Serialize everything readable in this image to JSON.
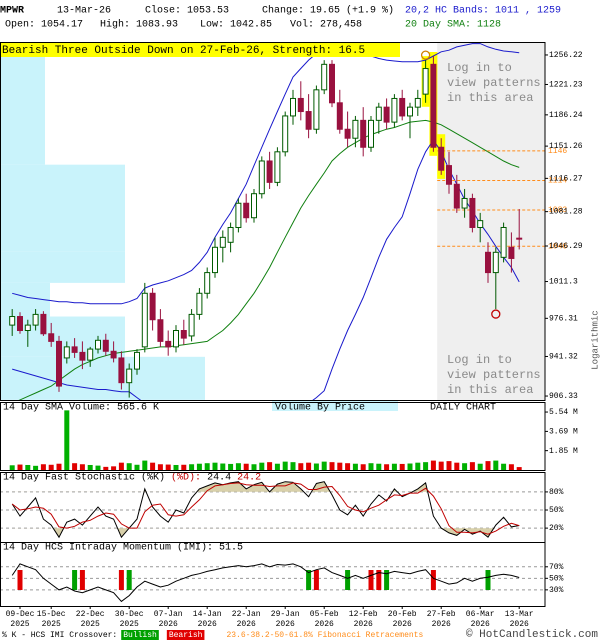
{
  "header": {
    "symbol": "MPWR",
    "date": "13-Mar-26",
    "close": "Close: 1053.53",
    "change": "Change: 19.65 (+1.9 %)",
    "open": "Open: 1054.17",
    "high": "High: 1083.93",
    "low": "Low: 1042.85",
    "volume": "Vol: 278,458"
  },
  "footer": {
    "copyright": "© HotCandlestick.com"
  },
  "chart_data": [
    {
      "type": "candlestick",
      "title": "Bearish Three Outside Down on 27-Feb-26, Strength: 16.5",
      "title_color": "#ffff00",
      "categories": [
        null,
        "09-Dec",
        null,
        null,
        null,
        "15-Dec",
        null,
        null,
        null,
        null,
        "22-Dec",
        null,
        null,
        null,
        null,
        "30-Dec",
        null,
        null,
        null,
        null,
        "07-Jan",
        null,
        null,
        null,
        null,
        "14-Jan",
        null,
        null,
        null,
        null,
        "22-Jan",
        null,
        null,
        null,
        null,
        "29-Jan",
        null,
        null,
        null,
        null,
        "05-Feb",
        null,
        null,
        null,
        null,
        "12-Feb",
        null,
        null,
        null,
        null,
        "20-Feb",
        null,
        null,
        null,
        null,
        "27-Feb",
        null,
        null,
        null,
        null,
        "06-Mar",
        null,
        null,
        null,
        null,
        "13-Mar"
      ],
      "category_years": [
        null,
        "2025",
        null,
        null,
        null,
        "2025",
        null,
        null,
        null,
        null,
        "2025",
        null,
        null,
        null,
        null,
        "2025",
        null,
        null,
        null,
        null,
        "2026",
        null,
        null,
        null,
        null,
        "2026",
        null,
        null,
        null,
        null,
        "2026",
        null,
        null,
        null,
        null,
        "2026",
        null,
        null,
        null,
        null,
        "2026",
        null,
        null,
        null,
        null,
        "2026",
        null,
        null,
        null,
        null,
        "2026",
        null,
        null,
        null,
        null,
        "2026",
        null,
        null,
        null,
        null,
        "2026",
        null,
        null,
        null,
        null,
        "2026"
      ],
      "open": [
        970,
        978,
        965,
        970,
        980,
        962,
        955,
        940,
        950,
        945,
        938,
        948,
        956,
        946,
        940,
        918,
        930,
        950,
        1000,
        975,
        955,
        950,
        965,
        960,
        980,
        1000,
        1020,
        1045,
        1050,
        1065,
        1090,
        1075,
        1100,
        1135,
        1112,
        1145,
        1185,
        1205,
        1190,
        1170,
        1215,
        1245,
        1200,
        1170,
        1160,
        1180,
        1150,
        1180,
        1195,
        1178,
        1205,
        1185,
        1195,
        1210,
        1245,
        1150,
        1130,
        1110,
        1085,
        1095,
        1065,
        1040,
        1020,
        1035,
        1045,
        1054.17
      ],
      "high": [
        985,
        982,
        975,
        985,
        983,
        972,
        960,
        955,
        958,
        955,
        950,
        960,
        962,
        955,
        946,
        935,
        948,
        1010,
        1005,
        985,
        965,
        970,
        975,
        985,
        1005,
        1025,
        1055,
        1062,
        1070,
        1095,
        1100,
        1105,
        1140,
        1145,
        1150,
        1190,
        1215,
        1225,
        1210,
        1220,
        1250,
        1250,
        1215,
        1190,
        1185,
        1195,
        1185,
        1200,
        1205,
        1210,
        1215,
        1200,
        1215,
        1250,
        1255,
        1160,
        1145,
        1120,
        1105,
        1100,
        1080,
        1050,
        1045,
        1070,
        1060,
        1083.93
      ],
      "low": [
        960,
        962,
        950,
        965,
        960,
        950,
        910,
        935,
        940,
        930,
        932,
        944,
        942,
        936,
        912,
        905,
        925,
        945,
        965,
        950,
        942,
        945,
        952,
        955,
        975,
        995,
        1015,
        1030,
        1040,
        1060,
        1070,
        1070,
        1095,
        1105,
        1108,
        1140,
        1175,
        1180,
        1160,
        1165,
        1210,
        1195,
        1165,
        1150,
        1150,
        1140,
        1145,
        1165,
        1170,
        1172,
        1180,
        1160,
        1185,
        1200,
        1145,
        1120,
        1100,
        1080,
        1075,
        1060,
        1050,
        1010,
        985,
        1030,
        1020,
        1042.85
      ],
      "close": [
        978,
        965,
        970,
        980,
        962,
        955,
        915,
        950,
        945,
        938,
        948,
        956,
        946,
        940,
        918,
        930,
        945,
        1000,
        975,
        955,
        950,
        965,
        958,
        980,
        1000,
        1020,
        1045,
        1055,
        1065,
        1090,
        1075,
        1100,
        1135,
        1112,
        1145,
        1185,
        1205,
        1190,
        1170,
        1215,
        1245,
        1200,
        1170,
        1160,
        1180,
        1150,
        1180,
        1195,
        1178,
        1205,
        1185,
        1195,
        1205,
        1240,
        1150,
        1125,
        1110,
        1085,
        1095,
        1065,
        1072,
        1020,
        1040,
        1065,
        1033.88,
        1053.53
      ],
      "up_color": "#005a00",
      "down_color": "#99113f",
      "log_scale": true,
      "y_label": "Logarithmic",
      "ylim": [
        902.9,
        1271.9
      ],
      "yticks": [
        906.33,
        941.32,
        976.31,
        1011.3,
        1046.29,
        1081.28,
        1116.27,
        1151.26,
        1186.24,
        1221.23,
        1256.22
      ],
      "series": [
        {
          "name": "20,2 HC Bands: 1011 , 1259",
          "color": "#1a1acc",
          "values": [
            1000,
            998,
            996,
            995,
            994,
            993,
            992,
            992,
            991,
            991,
            990,
            990,
            990,
            990,
            990,
            992,
            995,
            1005,
            1008,
            1010,
            1012,
            1015,
            1018,
            1022,
            1030,
            1040,
            1055,
            1068,
            1080,
            1095,
            1110,
            1130,
            1150,
            1170,
            1190,
            1210,
            1230,
            1240,
            1250,
            1258,
            1265,
            1266,
            1265,
            1263,
            1262,
            1258,
            1255,
            1252,
            1250,
            1249,
            1248,
            1248,
            1248,
            1250,
            1255,
            1260,
            1262,
            1266,
            1268,
            1270,
            1270,
            1266,
            1263,
            1261,
            1260,
            1259
          ],
          "lower": [
            930,
            928,
            926,
            924,
            922,
            920,
            918,
            916,
            915,
            914,
            913,
            912,
            912,
            911,
            910,
            910,
            905,
            900,
            898,
            896,
            894,
            892,
            890,
            888,
            886,
            885,
            884,
            884,
            885,
            886,
            887,
            888,
            889,
            890,
            892,
            894,
            896,
            898,
            900,
            905,
            911,
            930,
            948,
            965,
            980,
            996,
            1015,
            1035,
            1053,
            1065,
            1076,
            1100,
            1126,
            1145,
            1158,
            1145,
            1126,
            1110,
            1094,
            1082,
            1069,
            1058,
            1046,
            1035,
            1025,
            1011
          ]
        },
        {
          "name": "20 Day SMA: 1128",
          "color": "#108010",
          "values": [
            900,
            903,
            906,
            909,
            912,
            915,
            920,
            925,
            930,
            934,
            937,
            940,
            942,
            944,
            945,
            946,
            947,
            948,
            949,
            950,
            950,
            951,
            952,
            953,
            954,
            955,
            960,
            965,
            972,
            980,
            990,
            1000,
            1012,
            1025,
            1040,
            1055,
            1070,
            1085,
            1098,
            1110,
            1122,
            1135,
            1143,
            1150,
            1155,
            1160,
            1164,
            1167,
            1170,
            1172,
            1175,
            1178,
            1179,
            1180,
            1178,
            1175,
            1170,
            1165,
            1160,
            1155,
            1150,
            1145,
            1140,
            1135,
            1131,
            1128
          ]
        }
      ],
      "fibonacci": {
        "label": "23.6-38.2-50-61.8% Fibonacci Retracements",
        "color": "#ff8c1a",
        "levels": [
          1146,
          1114,
          1083,
          1046
        ]
      },
      "volume_by_price": {
        "name": "Volume By Price",
        "color": "#c9f3fb",
        "bins": [
          903,
          941,
          978,
          1010,
          1041,
          1131,
          1254
        ],
        "values": [
          205,
          125,
          50,
          125,
          125,
          45
        ]
      },
      "annotations": [
        [
          "Log in to",
          "view patterns",
          "in this area"
        ],
        [
          "Log in to",
          "view patterns",
          "in this area"
        ]
      ]
    },
    {
      "type": "bar",
      "title": "14 Day SMA Volume: 565.6 K",
      "annotation": "DAILY CHART",
      "up_color": "#00b000",
      "down_color": "#e00000",
      "values": [
        450000,
        520000,
        480000,
        400000,
        550000,
        500000,
        600000,
        5700000,
        650000,
        550000,
        480000,
        420000,
        300000,
        350000,
        700000,
        650000,
        500000,
        900000,
        700000,
        550000,
        520000,
        480000,
        500000,
        550000,
        600000,
        650000,
        700000,
        620000,
        580000,
        650000,
        600000,
        550000,
        700000,
        750000,
        600000,
        800000,
        750000,
        650000,
        700000,
        620000,
        800000,
        750000,
        700000,
        650000,
        600000,
        550000,
        650000,
        600000,
        550000,
        600000,
        580000,
        620000,
        700000,
        750000,
        900000,
        800000,
        850000,
        700000,
        650000,
        750000,
        600000,
        850000,
        900000,
        600000,
        550000,
        278458
      ],
      "ylim": [
        0,
        6500000
      ],
      "yticks": [
        {
          "value": 1850000,
          "label": "1.85 M"
        },
        {
          "value": 3690000,
          "label": "3.69 M"
        },
        {
          "value": 5540000,
          "label": "5.54 M"
        }
      ]
    },
    {
      "type": "line",
      "title": "14 Day Fast Stochastic",
      "shade_color": "#d8d0aa",
      "grid": true,
      "ylim": [
        -3,
        113
      ],
      "yticks": [
        {
          "value": 20,
          "label": "20%"
        },
        {
          "value": 50,
          "label": "50%"
        },
        {
          "value": 80,
          "label": "80%"
        }
      ],
      "series": [
        {
          "name": "(%K)",
          "color": "#000000",
          "values": [
            60,
            40,
            55,
            70,
            35,
            25,
            5,
            30,
            35,
            25,
            40,
            55,
            40,
            35,
            5,
            20,
            35,
            85,
            55,
            40,
            30,
            50,
            45,
            70,
            85,
            90,
            95,
            92,
            95,
            97,
            85,
            92,
            96,
            80,
            93,
            97,
            96,
            85,
            72,
            94,
            97,
            75,
            50,
            42,
            58,
            40,
            60,
            75,
            65,
            85,
            72,
            78,
            85,
            95,
            40,
            20,
            12,
            8,
            18,
            10,
            15,
            5,
            25,
            38,
            22,
            24.4
          ]
        },
        {
          "name": "(%D):",
          "color": "#c00000",
          "values": [
            60,
            50,
            52,
            55,
            53,
            43,
            22,
            20,
            23,
            30,
            33,
            40,
            45,
            43,
            27,
            20,
            20,
            47,
            58,
            60,
            42,
            40,
            42,
            55,
            67,
            82,
            90,
            92,
            94,
            95,
            92,
            91,
            91,
            89,
            90,
            90,
            95,
            93,
            84,
            84,
            88,
            89,
            74,
            56,
            50,
            47,
            53,
            58,
            67,
            75,
            74,
            78,
            78,
            86,
            73,
            52,
            24,
            13,
            13,
            12,
            14,
            10,
            15,
            23,
            28,
            24.2
          ]
        }
      ]
    },
    {
      "type": "line",
      "title": "14 Day HCS Intraday Momentum (IMI):",
      "grid": true,
      "ylim": [
        2,
        113
      ],
      "yticks": [
        {
          "value": 30,
          "label": "30%"
        },
        {
          "value": 50,
          "label": "50%"
        },
        {
          "value": 70,
          "label": "70%"
        }
      ],
      "series": [
        {
          "name": "IMI",
          "color": "#000000",
          "values": [
            55,
            75,
            70,
            65,
            50,
            40,
            30,
            35,
            28,
            25,
            30,
            35,
            30,
            25,
            10,
            20,
            35,
            45,
            40,
            35,
            38,
            45,
            50,
            55,
            58,
            62,
            65,
            68,
            70,
            72,
            70,
            72,
            75,
            70,
            74,
            73,
            75,
            70,
            60,
            65,
            68,
            60,
            55,
            50,
            55,
            50,
            55,
            60,
            58,
            62,
            60,
            58,
            62,
            65,
            50,
            45,
            40,
            42,
            50,
            45,
            50,
            52,
            55,
            57,
            55,
            51.5
          ]
        }
      ],
      "signals_title": "% K - HCS IMI Crossover:",
      "signals": [
        {
          "label": "Bullish",
          "color": "#00a000",
          "indices": [
            8,
            15,
            38,
            43,
            48,
            61
          ]
        },
        {
          "label": "Bearish",
          "color": "#e00000",
          "indices": [
            1,
            9,
            14,
            39,
            46,
            47,
            54
          ]
        }
      ]
    }
  ]
}
